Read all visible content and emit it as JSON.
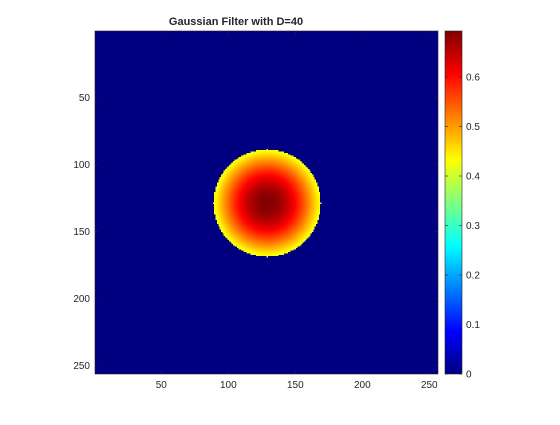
{
  "chart_data": {
    "type": "heatmap",
    "title": "Gaussian Filter with D=40",
    "xlabel": "",
    "ylabel": "",
    "colormap": "jet",
    "image_size": [
      256,
      256
    ],
    "center": [
      129,
      129
    ],
    "cutoff_radius": 40,
    "peak_value": 0.693,
    "sigma": 40,
    "outside_value": 0,
    "xlim": [
      0.5,
      256.5
    ],
    "ylim": [
      0.5,
      256.5
    ],
    "y_direction": "reverse",
    "x_ticks": [
      50,
      100,
      150,
      200,
      250
    ],
    "x_tick_labels": [
      "50",
      "100",
      "150",
      "200",
      "250"
    ],
    "y_ticks": [
      50,
      100,
      150,
      200,
      250
    ],
    "y_tick_labels": [
      "50",
      "100",
      "150",
      "200",
      "250"
    ],
    "colorbar": {
      "range": [
        0,
        0.693
      ],
      "ticks": [
        0,
        0.1,
        0.2,
        0.3,
        0.4,
        0.5,
        0.6
      ],
      "tick_labels": [
        "0",
        "0.1",
        "0.2",
        "0.3",
        "0.4",
        "0.5",
        "0.6"
      ],
      "placement": "right"
    },
    "grid": false
  }
}
